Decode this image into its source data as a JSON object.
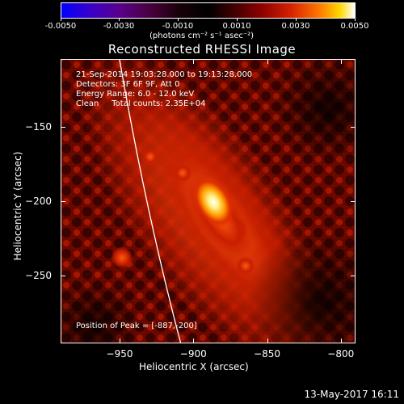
{
  "colorbar": {
    "tick_labels": [
      "-0.0050",
      "-0.0030",
      "-0.0010",
      "0.0010",
      "0.0030",
      "0.0050"
    ],
    "units": "(photons cm⁻² s⁻¹ asec⁻²)"
  },
  "title": "Reconstructed RHESSI Image",
  "info": {
    "time_range": "21-Sep-2014 19:03:28.000 to 19:13:28.000",
    "detectors": "Detectors: 3F 6F 9F, Att 0",
    "energy": "Energy Range: 6.0 - 12.0 keV",
    "clean": "Clean     Total counts: 2.35E+04"
  },
  "peak_label": "Position of Peak = [-887,-200]",
  "axes": {
    "xlabel": "Heliocentric X (arcsec)",
    "ylabel": "Heliocentric Y (arcsec)",
    "xticks": [
      "-950",
      "-900",
      "-850",
      "-800"
    ],
    "yticks": [
      "-150",
      "-200",
      "-250"
    ],
    "xlim": [
      -990,
      -790
    ],
    "ylim": [
      -296,
      -104
    ]
  },
  "peak": {
    "x": -887,
    "y": -200
  },
  "date_stamp": "13-May-2017 16:11"
}
